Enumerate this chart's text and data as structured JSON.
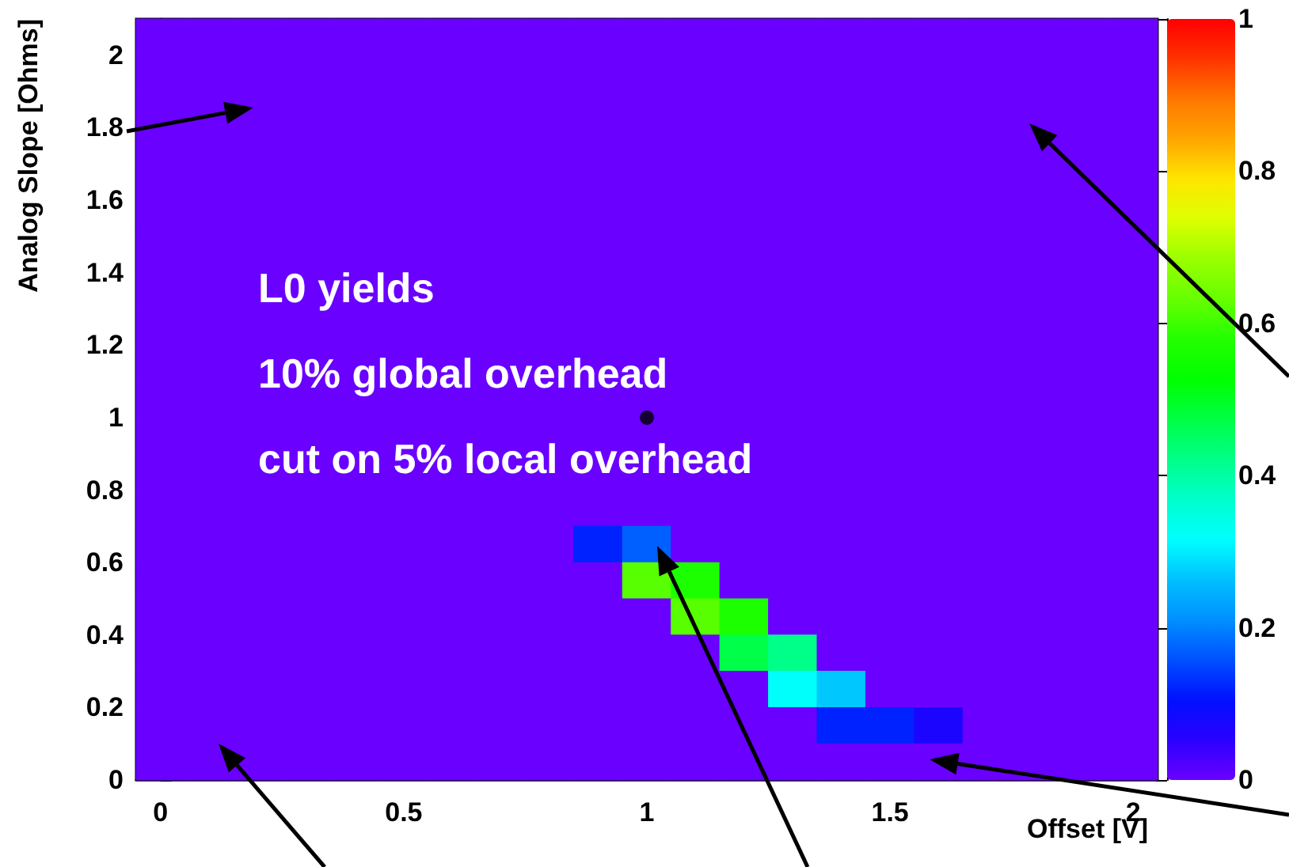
{
  "chart_data": {
    "type": "heatmap",
    "xlabel": "Offset [V]",
    "ylabel": "Analog Slope [Ohms]",
    "annotations": [
      "L0 yields",
      "10% global overhead",
      "cut on 5% local overhead"
    ],
    "xlim": [
      -0.05,
      2.05
    ],
    "xticks": [
      0,
      0.5,
      1,
      1.5,
      2
    ],
    "ylim": [
      0,
      2.1
    ],
    "yticks": [
      0,
      0.2,
      0.4,
      0.6,
      0.8,
      1,
      1.2,
      1.4,
      1.6,
      1.8,
      2
    ],
    "clim": [
      0,
      1
    ],
    "cticks": [
      0,
      0.2,
      0.4,
      0.6,
      0.8,
      1
    ],
    "colors": [
      "#6a00ff",
      "#2a00ff",
      "#0010ff",
      "#0050ff",
      "#0090ff",
      "#00c0ff",
      "#00ffff",
      "#00ffcc",
      "#00ff88",
      "#00ff44",
      "#00ff00",
      "#22ff00",
      "#66ff00",
      "#99ff00",
      "#ddff00",
      "#ffe600",
      "#ffa500",
      "#ff7700",
      "#ff3300",
      "#ff0000"
    ],
    "cells": [
      [
        0,
        0,
        0,
        0,
        0,
        0,
        0,
        0,
        0,
        0,
        0,
        0,
        0,
        0,
        0,
        0,
        0,
        0,
        0,
        0,
        0
      ],
      [
        0,
        0,
        0,
        0,
        0,
        0,
        0,
        0,
        0,
        0,
        0,
        0,
        0,
        0,
        0,
        0,
        0,
        0,
        0,
        0,
        0
      ],
      [
        0,
        0,
        0,
        0,
        0,
        0,
        0,
        0,
        0,
        0,
        0,
        0,
        0,
        0,
        0,
        0,
        0,
        0,
        0,
        0,
        0
      ],
      [
        0,
        0,
        0,
        0,
        0,
        0,
        0,
        0,
        0,
        0,
        0,
        0,
        0,
        0,
        0,
        0,
        0,
        0,
        0,
        0,
        0
      ],
      [
        0,
        0,
        0,
        0,
        0,
        0,
        0,
        0,
        0,
        0,
        0,
        0,
        0,
        0,
        0,
        0,
        0,
        0,
        0,
        0,
        0
      ],
      [
        0,
        0,
        0,
        0,
        0,
        0,
        0,
        0,
        0,
        0,
        0,
        0,
        0,
        0,
        0,
        0,
        0,
        0,
        0,
        0,
        0
      ],
      [
        0,
        0,
        0,
        0,
        0,
        0,
        0,
        0,
        0,
        0,
        0,
        0,
        0,
        0,
        0,
        0,
        0,
        0,
        0,
        0,
        0
      ],
      [
        0,
        0,
        0,
        0,
        0,
        0,
        0,
        0,
        0,
        0,
        0,
        0,
        0,
        0,
        0,
        0,
        0,
        0,
        0,
        0,
        0
      ],
      [
        0,
        0,
        0,
        0,
        0,
        0,
        0,
        0,
        0,
        0,
        0,
        0,
        0,
        0,
        0,
        0,
        0,
        0,
        0,
        0,
        0
      ],
      [
        0,
        0,
        0,
        0,
        0,
        0,
        0,
        0,
        0,
        0,
        0,
        0,
        0,
        0,
        0,
        0,
        0,
        0,
        0,
        0,
        0
      ],
      [
        0,
        0,
        0,
        0,
        0,
        0,
        0,
        0,
        0,
        0,
        0,
        0,
        0,
        0,
        0,
        0,
        0,
        0,
        0,
        0,
        0
      ],
      [
        0,
        0,
        0,
        0,
        0,
        0,
        0,
        0,
        0,
        0,
        0,
        0,
        0,
        0,
        0,
        0,
        0,
        0,
        0,
        0,
        0
      ],
      [
        0,
        0,
        0,
        0,
        0,
        0,
        0,
        0,
        0,
        0,
        0,
        0,
        0,
        0,
        0,
        0,
        0,
        0,
        0,
        0,
        0
      ],
      [
        0,
        0,
        0,
        0,
        0,
        0,
        0,
        0,
        0,
        0,
        0,
        0,
        0,
        0,
        0,
        0,
        0,
        0,
        0,
        0,
        0
      ],
      [
        0,
        0,
        0,
        0,
        0,
        0,
        0,
        0,
        0,
        0.12,
        0.17,
        0,
        0,
        0,
        0,
        0,
        0,
        0,
        0,
        0,
        0
      ],
      [
        0,
        0,
        0,
        0,
        0,
        0,
        0,
        0,
        0,
        0,
        0.62,
        0.57,
        0,
        0,
        0,
        0,
        0,
        0,
        0,
        0,
        0
      ],
      [
        0,
        0,
        0,
        0,
        0,
        0,
        0,
        0,
        0,
        0,
        0,
        0.62,
        0.57,
        0,
        0,
        0,
        0,
        0,
        0,
        0,
        0
      ],
      [
        0,
        0,
        0,
        0,
        0,
        0,
        0,
        0,
        0,
        0,
        0,
        0,
        0.47,
        0.42,
        0,
        0,
        0,
        0,
        0,
        0,
        0
      ],
      [
        0,
        0,
        0,
        0,
        0,
        0,
        0,
        0,
        0,
        0,
        0,
        0,
        0,
        0.32,
        0.27,
        0,
        0,
        0,
        0,
        0,
        0
      ],
      [
        0,
        0,
        0,
        0,
        0,
        0,
        0,
        0,
        0,
        0,
        0,
        0,
        0,
        0,
        0.12,
        0.12,
        0.07,
        0,
        0,
        0,
        0
      ],
      [
        0,
        0,
        0,
        0,
        0,
        0,
        0,
        0,
        0,
        0,
        0,
        0,
        0,
        0,
        0,
        0,
        0,
        0,
        0,
        0,
        0
      ]
    ],
    "series": [
      {
        "type": "scatter",
        "color": "#000000",
        "x": [
          1
        ],
        "values": [
          1
        ]
      }
    ]
  }
}
